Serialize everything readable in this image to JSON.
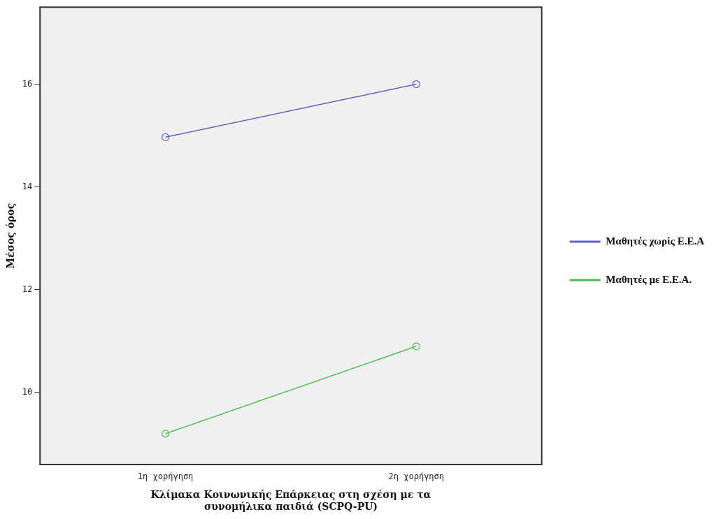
{
  "chart_data": {
    "type": "line",
    "categories": [
      "1η χορήγηση",
      "2η χορήγηση"
    ],
    "series": [
      {
        "name": "Μαθητές χωρίς Ε.Ε.Α",
        "color": "#5a63c0",
        "values": [
          14.97,
          16.0
        ]
      },
      {
        "name": "Μαθητές με Ε.Ε.Α.",
        "color": "#4cbc4c",
        "values": [
          9.2,
          10.9
        ]
      }
    ],
    "xlabel": "Κλίμακα Κοινωνικής Επάρκειας στη σχέση με τα\nσυνομήλικα παιδιά (SCPQ-PU)",
    "ylabel": "Μέσος όρος",
    "ylim": [
      8.6,
      17.5
    ],
    "yticks": [
      10,
      12,
      14,
      16
    ],
    "grid": false,
    "legend": "right",
    "marker": "circle",
    "line_style": "solid"
  }
}
